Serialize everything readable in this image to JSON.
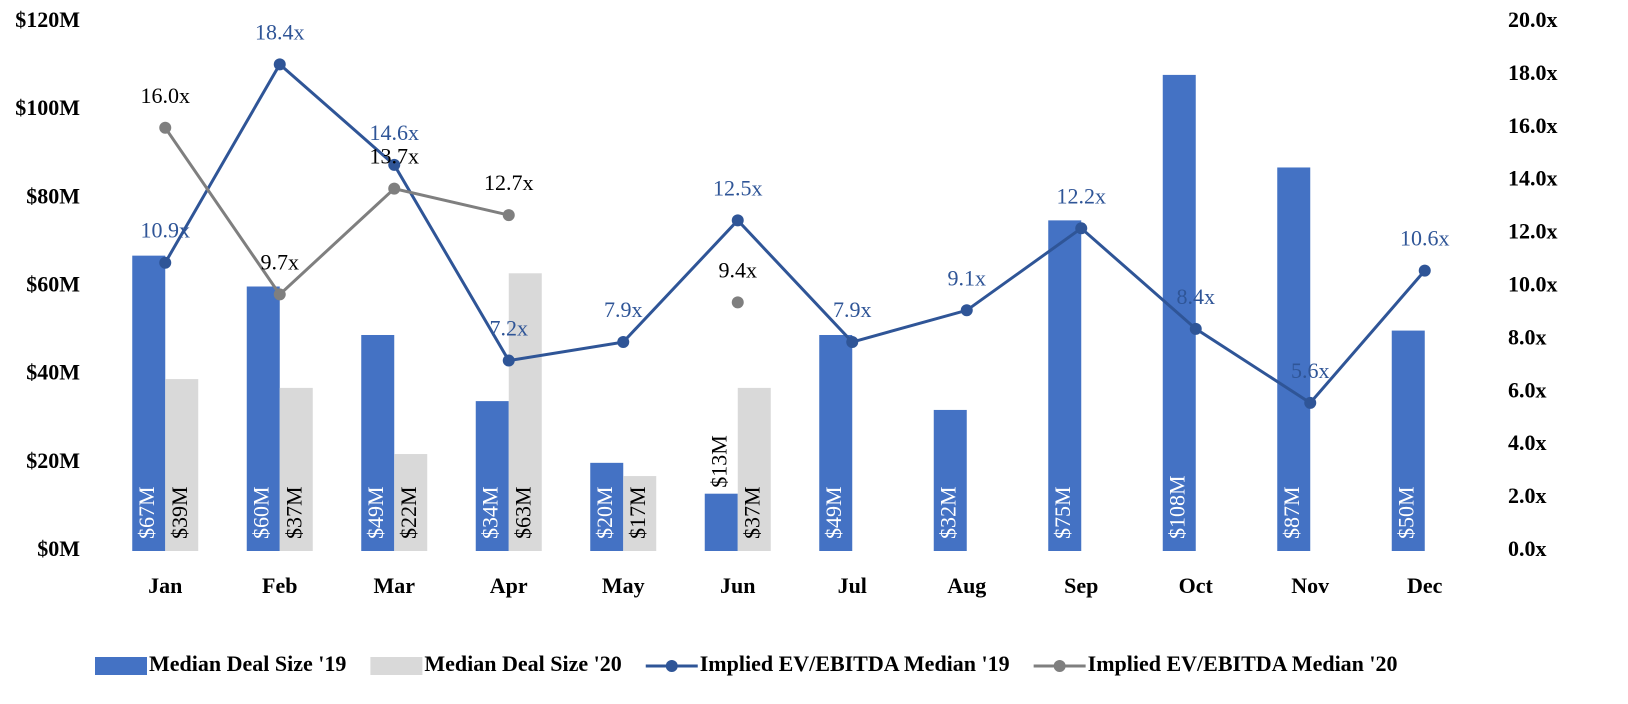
{
  "chart_data": {
    "type": "combo",
    "categories": [
      "Jan",
      "Feb",
      "Mar",
      "Apr",
      "May",
      "Jun",
      "Jul",
      "Aug",
      "Sep",
      "Oct",
      "Nov",
      "Dec"
    ],
    "series": [
      {
        "name": "Median Deal Size '19",
        "type": "bar",
        "color": "#4472c4",
        "label_color": "#ffffff",
        "values": [
          67,
          60,
          49,
          34,
          20,
          13,
          49,
          32,
          75,
          108,
          87,
          50
        ],
        "value_labels": [
          "$67M",
          "$60M",
          "$49M",
          "$34M",
          "$20M",
          "$13M",
          "$49M",
          "$32M",
          "$75M",
          "$108M",
          "$87M",
          "$50M"
        ]
      },
      {
        "name": "Median Deal Size '20",
        "type": "bar",
        "color": "#d9d9d9",
        "label_color": "#000000",
        "values": [
          39,
          37,
          22,
          63,
          17,
          37,
          null,
          null,
          null,
          null,
          null,
          null
        ],
        "value_labels": [
          "$39M",
          "$37M",
          "$22M",
          "$63M",
          "$17M",
          "$37M",
          null,
          null,
          null,
          null,
          null,
          null
        ]
      },
      {
        "name": "Implied EV/EBITDA Median '19",
        "type": "line",
        "axis": "y2",
        "color": "#2f5597",
        "label_color": "#2f5597",
        "values": [
          10.9,
          18.4,
          14.6,
          7.2,
          7.9,
          12.5,
          7.9,
          9.1,
          12.2,
          8.4,
          5.6,
          10.6
        ],
        "value_labels": [
          "10.9x",
          "18.4x",
          "14.6x",
          "7.2x",
          "7.9x",
          "12.5x",
          "7.9x",
          "9.1x",
          "12.2x",
          "8.4x",
          "5.6x",
          "10.6x"
        ]
      },
      {
        "name": "Implied EV/EBITDA Median '20",
        "type": "line",
        "axis": "y2",
        "color": "#7f7f7f",
        "label_color": "#000000",
        "values": [
          16.0,
          9.7,
          13.7,
          12.7,
          null,
          9.4,
          null,
          null,
          null,
          null,
          null,
          null
        ],
        "value_labels": [
          "16.0x",
          "9.7x",
          "13.7x",
          "12.7x",
          null,
          "9.4x",
          null,
          null,
          null,
          null,
          null,
          null
        ]
      }
    ],
    "ylim": [
      0,
      120
    ],
    "yticks": [
      {
        "value": 0,
        "label": "$0M"
      },
      {
        "value": 20,
        "label": "$20M"
      },
      {
        "value": 40,
        "label": "$40M"
      },
      {
        "value": 60,
        "label": "$60M"
      },
      {
        "value": 80,
        "label": "$80M"
      },
      {
        "value": 100,
        "label": "$100M"
      },
      {
        "value": 120,
        "label": "$120M"
      }
    ],
    "y2lim": [
      0,
      20
    ],
    "y2ticks": [
      {
        "value": 0,
        "label": "0.0x"
      },
      {
        "value": 2,
        "label": "2.0x"
      },
      {
        "value": 4,
        "label": "4.0x"
      },
      {
        "value": 6,
        "label": "6.0x"
      },
      {
        "value": 8,
        "label": "8.0x"
      },
      {
        "value": 10,
        "label": "10.0x"
      },
      {
        "value": 12,
        "label": "12.0x"
      },
      {
        "value": 14,
        "label": "14.0x"
      },
      {
        "value": 16,
        "label": "16.0x"
      },
      {
        "value": 18,
        "label": "18.0x"
      },
      {
        "value": 20,
        "label": "20.0x"
      }
    ],
    "legend": "bottom"
  }
}
